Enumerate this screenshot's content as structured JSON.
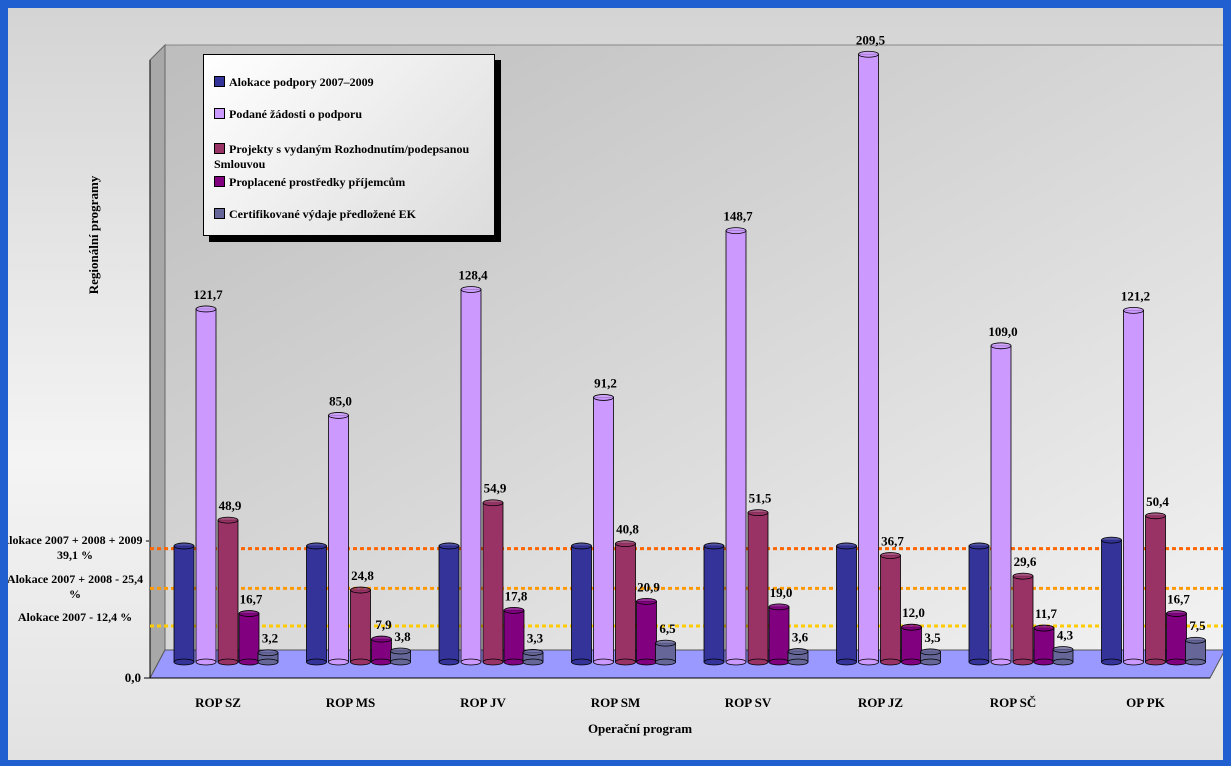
{
  "chart_data": {
    "type": "bar3d",
    "xlabel": "Operační program",
    "ylabel": "Regionální programy",
    "categories": [
      "ROP SZ",
      "ROP MS",
      "ROP JV",
      "ROP SM",
      "ROP SV",
      "ROP JZ",
      "ROP SČ",
      "OP PK"
    ],
    "series": [
      {
        "name": "Alokace podpory 2007–2009",
        "color": "#333399",
        "values": [
          40,
          40,
          40,
          40,
          40,
          40,
          40,
          42
        ]
      },
      {
        "name": "Podané žádosti o podporu",
        "color": "#cc99ff",
        "values": [
          121.7,
          85.0,
          128.4,
          91.2,
          148.7,
          209.5,
          109.0,
          121.2
        ],
        "value_labels": [
          "121,7",
          "85,0",
          "128,4",
          "91,2",
          "148,7",
          "209,5",
          "109,0",
          "121,2"
        ]
      },
      {
        "name": "Projekty s vydaným Rozhodnutím/podepsanou Smlouvou",
        "color": "#993366",
        "values": [
          48.9,
          24.8,
          54.9,
          40.8,
          51.5,
          36.7,
          29.6,
          50.4
        ],
        "value_labels": [
          "48,9",
          "24,8",
          "54,9",
          "40,8",
          "51,5",
          "36,7",
          "29,6",
          "50,4"
        ]
      },
      {
        "name": "Proplacené prostředky příjemcům",
        "color": "#800080",
        "values": [
          16.7,
          7.9,
          17.8,
          20.9,
          19.0,
          12.0,
          11.7,
          16.7
        ],
        "value_labels": [
          "16,7",
          "7,9",
          "17,8",
          "20,9",
          "19,0",
          "12,0",
          "11,7",
          "16,7"
        ]
      },
      {
        "name": "Certifikované výdaje předložené EK",
        "color": "#666699",
        "values": [
          3.2,
          3.8,
          3.3,
          6.5,
          3.6,
          3.5,
          4.3,
          7.5
        ],
        "value_labels": [
          "3,2",
          "3,8",
          "3,3",
          "6,5",
          "3,6",
          "3,5",
          "4,3",
          "7,5"
        ]
      }
    ],
    "reference_lines": [
      {
        "label": "Alokace 2007 + 2008 + 2009 - 39,1 %",
        "value": 39.1,
        "color": "#ff6600"
      },
      {
        "label": "Alokace 2007 + 2008 - 25,4 %",
        "value": 25.4,
        "color": "#ff9900"
      },
      {
        "label": "Alokace 2007 - 12,4 %",
        "value": 12.4,
        "color": "#ffcc00"
      }
    ],
    "ylim": [
      0,
      212
    ],
    "yticks": [
      {
        "value": 0,
        "label": "0,0"
      }
    ]
  }
}
